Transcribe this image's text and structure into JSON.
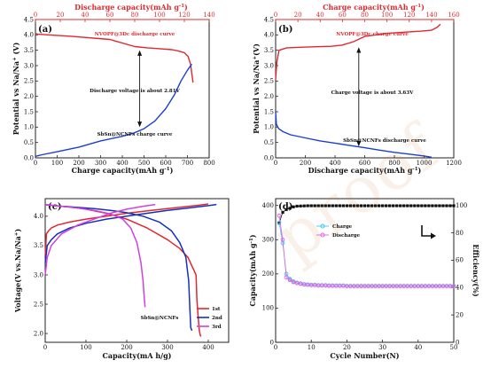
{
  "colors": {
    "red": "#e0282e",
    "blue": "#1a3fd0",
    "black": "#111111",
    "cyan": "#3fc7f0",
    "magenta": "#e060e6",
    "navy": "#1530c0",
    "purple": "#9b30e0"
  },
  "watermark": "proof",
  "chart_data": [
    {
      "panel": "a",
      "type": "line",
      "tag": "(a)",
      "xlabel": "Charge capacity(mAh g",
      "xlabel_sup": "-1",
      "xlabel_end": ")",
      "ylabel": "Potential vs Na/Na",
      "ylabel_sup": "+",
      "ylabel_end": " (V)",
      "x2label": "Discharge capacity(mAh g",
      "x2label_sup": "-1",
      "x2label_end": ")",
      "xlim": [
        0,
        800
      ],
      "ylim": [
        0.0,
        4.5
      ],
      "x2lim": [
        0,
        140
      ],
      "xticks": [
        0,
        100,
        200,
        300,
        400,
        500,
        600,
        700,
        800
      ],
      "yticks": [
        0.0,
        0.5,
        1.0,
        1.5,
        2.0,
        2.5,
        3.0,
        3.5,
        4.0,
        4.5
      ],
      "x2ticks": [
        0,
        20,
        40,
        60,
        80,
        100,
        120,
        140
      ],
      "annotations": {
        "top": "NVOPF@3Dc discharge curve",
        "middle": "Discharge voltage is about 2.81V",
        "bottom": "SbSn@NCNFs charge curve"
      },
      "series": [
        {
          "axis": "top",
          "color": "#e0282e",
          "x": [
            0,
            2,
            10,
            30,
            60,
            80,
            90,
            100,
            110,
            115,
            120,
            123,
            125,
            127
          ],
          "y": [
            4.05,
            4.02,
            4.0,
            3.95,
            3.85,
            3.62,
            3.58,
            3.55,
            3.52,
            3.48,
            3.42,
            3.3,
            3.05,
            2.45
          ]
        },
        {
          "axis": "bottom",
          "color": "#1a3fd0",
          "x": [
            0,
            30,
            100,
            200,
            300,
            400,
            450,
            500,
            550,
            600,
            640,
            670,
            700,
            720
          ],
          "y": [
            0.05,
            0.1,
            0.2,
            0.35,
            0.55,
            0.7,
            0.8,
            0.95,
            1.2,
            1.6,
            2.05,
            2.5,
            2.85,
            3.05
          ]
        }
      ]
    },
    {
      "panel": "b",
      "type": "line",
      "tag": "(b)",
      "xlabel": "Discharge capacity(mAh g",
      "xlabel_sup": "-1",
      "xlabel_end": ")",
      "ylabel": "Potential vs Na/Na",
      "ylabel_sup": "+",
      "ylabel_end": "(V)",
      "x2label": "Charge capacity(mAh g",
      "x2label_sup": "-1",
      "x2label_end": ")",
      "xlim": [
        0,
        1200
      ],
      "ylim": [
        0.0,
        4.5
      ],
      "x2lim": [
        0,
        160
      ],
      "xticks": [
        0,
        200,
        400,
        600,
        800,
        1000,
        1200
      ],
      "yticks": [
        0.0,
        0.5,
        1.0,
        1.5,
        2.0,
        2.5,
        3.0,
        3.5,
        4.0,
        4.5
      ],
      "x2ticks": [
        0,
        20,
        40,
        60,
        80,
        100,
        120,
        140,
        160
      ],
      "annotations": {
        "top": "NVOPF@3Dc charge curve",
        "middle": "Charge voltage is about 3.63V",
        "bottom": "SbSn@NCNFs discharge curve"
      },
      "series": [
        {
          "axis": "top",
          "color": "#e0282e",
          "x": [
            0,
            1,
            3,
            10,
            30,
            50,
            60,
            70,
            80,
            100,
            120,
            130,
            140,
            145,
            148
          ],
          "y": [
            2.55,
            3.1,
            3.5,
            3.58,
            3.61,
            3.63,
            3.67,
            3.78,
            3.95,
            4.05,
            4.1,
            4.12,
            4.15,
            4.25,
            4.35
          ]
        },
        {
          "axis": "bottom",
          "color": "#1a3fd0",
          "x": [
            0,
            5,
            20,
            50,
            100,
            200,
            300,
            400,
            500,
            600,
            700,
            800,
            900,
            1000,
            1050
          ],
          "y": [
            1.5,
            1.1,
            0.95,
            0.85,
            0.75,
            0.65,
            0.55,
            0.48,
            0.4,
            0.33,
            0.25,
            0.18,
            0.12,
            0.06,
            0.02
          ]
        }
      ]
    },
    {
      "panel": "c",
      "type": "line",
      "tag": "(c)",
      "xlabel": "Capacity(mA h/g)",
      "ylabel": "Voltage(V vs.Na/Na",
      "ylabel_sup": "+",
      "ylabel_end": ")",
      "xlim": [
        0,
        450
      ],
      "ylim": [
        1.85,
        4.3
      ],
      "xticks": [
        0,
        100,
        200,
        300,
        400
      ],
      "yticks": [
        2.0,
        2.5,
        3.0,
        3.5,
        4.0
      ],
      "annotation": "SbSn@NCNFs",
      "legend": [
        "1st",
        "2nd",
        "3rd"
      ],
      "series": [
        {
          "name": "1st",
          "color": "#e0282e",
          "x": [
            0,
            5,
            20,
            40,
            60,
            100,
            150,
            200,
            250,
            300,
            330,
            350,
            370,
            372,
            375,
            378,
            380,
            382
          ],
          "y": [
            4.2,
            4.19,
            4.18,
            4.17,
            4.16,
            4.12,
            4.05,
            3.95,
            3.8,
            3.6,
            3.45,
            3.3,
            3.0,
            2.6,
            2.3,
            2.05,
            1.98,
            1.95
          ],
          "x_charge": [
            0,
            3,
            8,
            15,
            30,
            60,
            100,
            150,
            200,
            260,
            300,
            340,
            380,
            400
          ],
          "y_charge": [
            3.3,
            3.7,
            3.75,
            3.8,
            3.85,
            3.9,
            3.95,
            4.0,
            4.05,
            4.1,
            4.13,
            4.16,
            4.19,
            4.21
          ]
        },
        {
          "name": "2nd",
          "color": "#1530c0",
          "x": [
            0,
            10,
            40,
            80,
            120,
            160,
            200,
            240,
            280,
            310,
            330,
            345,
            352,
            355,
            357,
            360
          ],
          "y": [
            4.2,
            4.19,
            4.17,
            4.15,
            4.13,
            4.1,
            4.06,
            4.0,
            3.9,
            3.75,
            3.55,
            3.3,
            2.9,
            2.4,
            2.1,
            2.05
          ],
          "x_charge": [
            0,
            5,
            15,
            30,
            60,
            100,
            150,
            200,
            250,
            300,
            350,
            400,
            420
          ],
          "y_charge": [
            3.2,
            3.5,
            3.6,
            3.7,
            3.8,
            3.88,
            3.95,
            4.0,
            4.05,
            4.1,
            4.14,
            4.18,
            4.2
          ]
        },
        {
          "name": "3rd",
          "color": "#d040e0",
          "x": [
            0,
            10,
            40,
            80,
            120,
            160,
            190,
            210,
            225,
            235,
            240,
            243,
            245
          ],
          "y": [
            4.2,
            4.19,
            4.17,
            4.14,
            4.1,
            4.04,
            3.95,
            3.8,
            3.55,
            3.2,
            2.9,
            2.6,
            2.45
          ],
          "x_charge": [
            0,
            5,
            15,
            40,
            80,
            120,
            160,
            200,
            240,
            270
          ],
          "y_charge": [
            3.0,
            3.3,
            3.5,
            3.7,
            3.85,
            3.95,
            4.05,
            4.12,
            4.17,
            4.2
          ]
        }
      ]
    },
    {
      "panel": "d",
      "type": "scatter",
      "tag": "(d)",
      "xlabel": "Cycle Number(N)",
      "ylabel": "Capacity(mAh g",
      "ylabel_sup": "-1",
      "ylabel_end": ")",
      "y2label": "Efficiency(%)",
      "xlim": [
        0,
        50
      ],
      "ylim": [
        0,
        420
      ],
      "y2lim": [
        0,
        105
      ],
      "xticks": [
        0,
        10,
        20,
        30,
        40,
        50
      ],
      "yticks": [
        0,
        100,
        200,
        300,
        400
      ],
      "y2ticks": [
        0,
        20,
        40,
        60,
        80,
        100
      ],
      "legend": [
        "Charge",
        "Discharge"
      ],
      "series": [
        {
          "name": "Efficiency",
          "color": "#111111",
          "marker": "square",
          "x": [
            1,
            2,
            3,
            4,
            5,
            6,
            7,
            8,
            9,
            10,
            11,
            12,
            13,
            14,
            15,
            16,
            17,
            18,
            19,
            20,
            21,
            22,
            23,
            24,
            25,
            26,
            27,
            28,
            29,
            30,
            31,
            32,
            33,
            34,
            35,
            36,
            37,
            38,
            39,
            40,
            41,
            42,
            43,
            44,
            45,
            46,
            47,
            48,
            49,
            50
          ],
          "y": [
            87,
            95,
            97,
            98,
            99,
            99.5,
            99.6,
            99.7,
            99.8,
            99.8,
            99.8,
            99.8,
            99.8,
            99.8,
            99.8,
            99.8,
            99.8,
            99.8,
            99.8,
            99.8,
            99.8,
            99.8,
            99.8,
            99.8,
            99.8,
            99.8,
            99.8,
            99.8,
            99.8,
            99.8,
            99.8,
            99.8,
            99.8,
            99.8,
            99.8,
            99.8,
            99.8,
            99.8,
            99.8,
            99.8,
            99.8,
            99.8,
            99.8,
            99.8,
            99.8,
            99.8,
            99.8,
            99.8,
            99.8,
            99.8
          ]
        },
        {
          "name": "Charge",
          "color": "#3fc7f0",
          "marker": "circle",
          "x": [
            1,
            2,
            3,
            4,
            5,
            6,
            7,
            8,
            9,
            10,
            11,
            12,
            13,
            14,
            15,
            16,
            17,
            18,
            19,
            20,
            21,
            22,
            23,
            24,
            25,
            26,
            27,
            28,
            29,
            30,
            31,
            32,
            33,
            34,
            35,
            36,
            37,
            38,
            39,
            40,
            41,
            42,
            43,
            44,
            45,
            46,
            47,
            48,
            49,
            50
          ],
          "y": [
            350,
            290,
            200,
            185,
            178,
            174,
            172,
            170,
            169,
            168,
            168,
            167,
            167,
            167,
            166,
            166,
            166,
            166,
            166,
            165,
            165,
            165,
            165,
            165,
            165,
            165,
            165,
            165,
            165,
            165,
            165,
            165,
            165,
            165,
            165,
            165,
            165,
            165,
            165,
            165,
            165,
            165,
            165,
            165,
            165,
            165,
            165,
            165,
            165,
            165
          ]
        },
        {
          "name": "Discharge",
          "color": "#e060e6",
          "marker": "circle",
          "x": [
            1,
            2,
            3,
            4,
            5,
            6,
            7,
            8,
            9,
            10,
            11,
            12,
            13,
            14,
            15,
            16,
            17,
            18,
            19,
            20,
            21,
            22,
            23,
            24,
            25,
            26,
            27,
            28,
            29,
            30,
            31,
            32,
            33,
            34,
            35,
            36,
            37,
            38,
            39,
            40,
            41,
            42,
            43,
            44,
            45,
            46,
            47,
            48,
            49,
            50
          ],
          "y": [
            370,
            300,
            190,
            182,
            176,
            173,
            171,
            169,
            168,
            167,
            167,
            166,
            166,
            166,
            165,
            165,
            165,
            165,
            165,
            164,
            164,
            164,
            164,
            164,
            164,
            164,
            164,
            164,
            164,
            164,
            164,
            164,
            164,
            164,
            164,
            164,
            164,
            164,
            164,
            164,
            164,
            164,
            164,
            164,
            164,
            164,
            164,
            164,
            164,
            164
          ]
        }
      ]
    }
  ]
}
